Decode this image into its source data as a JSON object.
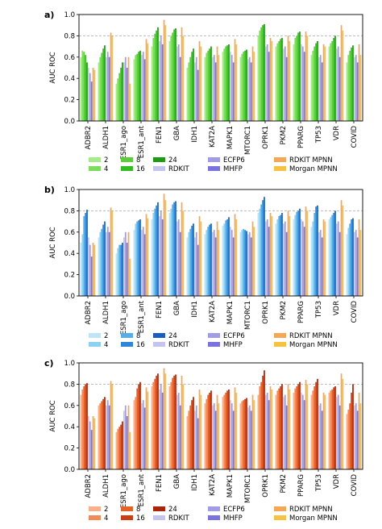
{
  "chart_data": [
    {
      "type": "bar",
      "panel_label": "a)",
      "ylabel": "AUC ROC",
      "ylim": [
        0.0,
        1.0
      ],
      "yticks": [
        "0.0",
        "0.2",
        "0.4",
        "0.6",
        "0.8",
        "1.0"
      ],
      "grid": "dashed lines at 0.8",
      "categories": [
        "ADBR2",
        "ALDH1",
        "ESR1_ago",
        "ESR1_ant",
        "FEN1",
        "GBA",
        "IDH1",
        "KAT2A",
        "MAPK1",
        "MTORC1",
        "OPRK1",
        "PKM2",
        "PPARG",
        "TP53",
        "VDR",
        "COVID"
      ],
      "series": [
        {
          "name": "2",
          "color": "#a6ea8a",
          "values": [
            0.6,
            0.55,
            0.35,
            0.58,
            0.7,
            0.75,
            0.5,
            0.6,
            0.65,
            0.6,
            0.8,
            0.7,
            0.72,
            0.62,
            0.7,
            0.55
          ]
        },
        {
          "name": "4",
          "color": "#7ddb5e",
          "values": [
            0.66,
            0.6,
            0.4,
            0.62,
            0.78,
            0.8,
            0.55,
            0.64,
            0.68,
            0.63,
            0.85,
            0.73,
            0.78,
            0.66,
            0.73,
            0.62
          ]
        },
        {
          "name": "8",
          "color": "#5ccd3a",
          "values": [
            0.65,
            0.64,
            0.45,
            0.63,
            0.82,
            0.83,
            0.6,
            0.66,
            0.7,
            0.65,
            0.88,
            0.75,
            0.8,
            0.7,
            0.75,
            0.66
          ]
        },
        {
          "name": "16",
          "color": "#34bb22",
          "values": [
            0.62,
            0.68,
            0.5,
            0.65,
            0.85,
            0.86,
            0.65,
            0.68,
            0.71,
            0.66,
            0.9,
            0.77,
            0.83,
            0.73,
            0.78,
            0.69
          ]
        },
        {
          "name": "24",
          "color": "#1e9a14",
          "values": [
            0.55,
            0.71,
            0.55,
            0.66,
            0.88,
            0.87,
            0.68,
            0.7,
            0.72,
            0.67,
            0.91,
            0.78,
            0.84,
            0.75,
            0.8,
            0.71
          ]
        },
        {
          "name": "RDKIT",
          "color": "#c4c4ee",
          "values": [
            0.5,
            0.6,
            0.55,
            0.62,
            0.75,
            0.7,
            0.55,
            0.6,
            0.65,
            0.58,
            0.7,
            0.68,
            0.72,
            0.6,
            0.68,
            0.6
          ]
        },
        {
          "name": "ECFP6",
          "color": "#a29ce6",
          "values": [
            0.45,
            0.65,
            0.6,
            0.65,
            0.8,
            0.72,
            0.6,
            0.62,
            0.62,
            0.6,
            0.72,
            0.7,
            0.7,
            0.62,
            0.7,
            0.62
          ]
        },
        {
          "name": "MHFP",
          "color": "#7a72de",
          "values": [
            0.37,
            0.6,
            0.5,
            0.58,
            0.72,
            0.6,
            0.48,
            0.55,
            0.55,
            0.55,
            0.65,
            0.6,
            0.65,
            0.55,
            0.6,
            0.55
          ]
        },
        {
          "name": "RDKIT MPNN",
          "color": "#f4a857",
          "values": [
            0.5,
            0.83,
            0.6,
            0.77,
            0.95,
            0.88,
            0.75,
            0.7,
            0.77,
            0.7,
            0.78,
            0.8,
            0.84,
            0.72,
            0.9,
            0.72
          ]
        },
        {
          "name": "Morgan MPNN",
          "color": "#f6c244",
          "values": [
            0.48,
            0.8,
            0.35,
            0.73,
            0.9,
            0.8,
            0.7,
            0.62,
            0.72,
            0.65,
            0.75,
            0.75,
            0.8,
            0.7,
            0.85,
            0.62
          ]
        }
      ]
    },
    {
      "type": "bar",
      "panel_label": "b)",
      "ylabel": "AUC ROC",
      "ylim": [
        0.0,
        1.0
      ],
      "yticks": [
        "0.0",
        "0.2",
        "0.4",
        "0.6",
        "0.8",
        "1.0"
      ],
      "grid": "dashed lines at 0.8",
      "categories": [
        "ADBR2",
        "ALDH1",
        "ESR1_ago",
        "ESR1_ant",
        "FEN1",
        "GBA",
        "IDH1",
        "KAT2A",
        "MAPK1",
        "MTORC1",
        "OPRK1",
        "PKM2",
        "PPARG",
        "TP53",
        "VDR",
        "COVID"
      ],
      "series": [
        {
          "name": "2",
          "color": "#bfe4f5",
          "values": [
            0.5,
            0.55,
            0.4,
            0.62,
            0.72,
            0.78,
            0.55,
            0.58,
            0.66,
            0.6,
            0.78,
            0.68,
            0.72,
            0.65,
            0.72,
            0.58
          ]
        },
        {
          "name": "4",
          "color": "#8ed0f0",
          "values": [
            0.58,
            0.6,
            0.45,
            0.68,
            0.78,
            0.82,
            0.6,
            0.62,
            0.68,
            0.62,
            0.82,
            0.72,
            0.76,
            0.7,
            0.74,
            0.64
          ]
        },
        {
          "name": "8",
          "color": "#55aee6",
          "values": [
            0.75,
            0.63,
            0.48,
            0.7,
            0.82,
            0.86,
            0.63,
            0.65,
            0.71,
            0.63,
            0.86,
            0.75,
            0.79,
            0.78,
            0.76,
            0.68
          ]
        },
        {
          "name": "16",
          "color": "#2f86d6",
          "values": [
            0.78,
            0.67,
            0.48,
            0.71,
            0.85,
            0.88,
            0.66,
            0.67,
            0.72,
            0.62,
            0.9,
            0.76,
            0.8,
            0.84,
            0.78,
            0.72
          ]
        },
        {
          "name": "24",
          "color": "#1a5fc0",
          "values": [
            0.81,
            0.7,
            0.5,
            0.72,
            0.88,
            0.89,
            0.68,
            0.68,
            0.74,
            0.61,
            0.93,
            0.78,
            0.82,
            0.85,
            0.8,
            0.73
          ]
        },
        {
          "name": "RDKIT",
          "color": "#c4c4ee",
          "values": [
            0.55,
            0.6,
            0.55,
            0.62,
            0.75,
            0.7,
            0.55,
            0.6,
            0.65,
            0.58,
            0.7,
            0.68,
            0.72,
            0.6,
            0.68,
            0.6
          ]
        },
        {
          "name": "ECFP6",
          "color": "#a29ce6",
          "values": [
            0.48,
            0.65,
            0.6,
            0.65,
            0.8,
            0.72,
            0.6,
            0.62,
            0.62,
            0.6,
            0.72,
            0.7,
            0.7,
            0.62,
            0.7,
            0.62
          ]
        },
        {
          "name": "MHFP",
          "color": "#7a72de",
          "values": [
            0.37,
            0.6,
            0.5,
            0.58,
            0.72,
            0.6,
            0.48,
            0.55,
            0.55,
            0.55,
            0.65,
            0.6,
            0.65,
            0.55,
            0.6,
            0.55
          ]
        },
        {
          "name": "RDKIT MPNN",
          "color": "#f4a857",
          "values": [
            0.5,
            0.83,
            0.6,
            0.77,
            0.96,
            0.88,
            0.75,
            0.7,
            0.77,
            0.7,
            0.78,
            0.8,
            0.84,
            0.72,
            0.9,
            0.72
          ]
        },
        {
          "name": "Morgan MPNN",
          "color": "#f6c244",
          "values": [
            0.48,
            0.8,
            0.35,
            0.73,
            0.9,
            0.8,
            0.7,
            0.62,
            0.72,
            0.65,
            0.75,
            0.75,
            0.8,
            0.7,
            0.85,
            0.62
          ]
        }
      ]
    },
    {
      "type": "bar",
      "panel_label": "c)",
      "ylabel": "AUC ROC",
      "ylim": [
        0.0,
        1.0
      ],
      "yticks": [
        "0.0",
        "0.2",
        "0.4",
        "0.6",
        "0.8",
        "1.0"
      ],
      "grid": "dashed lines at 0.8",
      "categories": [
        "ADBR2",
        "ALDH1",
        "ESR1_ago",
        "ESR1_ant",
        "FEN1",
        "GBA",
        "IDH1",
        "KAT2A",
        "MAPK1",
        "MTORC1",
        "OPRK1",
        "PKM2",
        "PPARG",
        "TP53",
        "VDR",
        "COVID"
      ],
      "series": [
        {
          "name": "2",
          "color": "#f7b08a",
          "values": [
            0.7,
            0.6,
            0.35,
            0.65,
            0.78,
            0.78,
            0.5,
            0.62,
            0.68,
            0.62,
            0.7,
            0.7,
            0.72,
            0.7,
            0.72,
            0.52
          ]
        },
        {
          "name": "4",
          "color": "#f08a56",
          "values": [
            0.75,
            0.62,
            0.38,
            0.68,
            0.82,
            0.82,
            0.55,
            0.66,
            0.7,
            0.64,
            0.78,
            0.74,
            0.76,
            0.74,
            0.74,
            0.56
          ]
        },
        {
          "name": "8",
          "color": "#e4612a",
          "values": [
            0.78,
            0.64,
            0.4,
            0.76,
            0.85,
            0.86,
            0.6,
            0.7,
            0.72,
            0.65,
            0.82,
            0.76,
            0.78,
            0.78,
            0.75,
            0.62
          ]
        },
        {
          "name": "16",
          "color": "#cc3e12",
          "values": [
            0.8,
            0.66,
            0.42,
            0.8,
            0.88,
            0.88,
            0.65,
            0.72,
            0.74,
            0.66,
            0.88,
            0.78,
            0.8,
            0.82,
            0.77,
            0.72
          ]
        },
        {
          "name": "24",
          "color": "#a92408",
          "values": [
            0.81,
            0.68,
            0.45,
            0.82,
            0.9,
            0.89,
            0.68,
            0.74,
            0.75,
            0.67,
            0.93,
            0.8,
            0.82,
            0.85,
            0.78,
            0.8
          ]
        },
        {
          "name": "RDKIT",
          "color": "#c4c4ee",
          "values": [
            0.5,
            0.6,
            0.55,
            0.62,
            0.75,
            0.7,
            0.55,
            0.6,
            0.65,
            0.58,
            0.7,
            0.68,
            0.72,
            0.6,
            0.68,
            0.6
          ]
        },
        {
          "name": "ECFP6",
          "color": "#a29ce6",
          "values": [
            0.45,
            0.65,
            0.6,
            0.65,
            0.8,
            0.72,
            0.6,
            0.62,
            0.62,
            0.6,
            0.72,
            0.7,
            0.7,
            0.62,
            0.7,
            0.62
          ]
        },
        {
          "name": "MHFP",
          "color": "#7a72de",
          "values": [
            0.37,
            0.6,
            0.5,
            0.58,
            0.72,
            0.6,
            0.48,
            0.55,
            0.55,
            0.55,
            0.65,
            0.6,
            0.65,
            0.55,
            0.6,
            0.55
          ]
        },
        {
          "name": "RDKIT MPNN",
          "color": "#f4a857",
          "values": [
            0.5,
            0.83,
            0.6,
            0.77,
            0.95,
            0.88,
            0.75,
            0.7,
            0.77,
            0.7,
            0.78,
            0.8,
            0.84,
            0.72,
            0.9,
            0.72
          ]
        },
        {
          "name": "Morgan MPNN",
          "color": "#f6c244",
          "values": [
            0.48,
            0.8,
            0.35,
            0.73,
            0.9,
            0.8,
            0.7,
            0.62,
            0.72,
            0.65,
            0.75,
            0.75,
            0.8,
            0.7,
            0.85,
            0.62
          ]
        }
      ]
    }
  ]
}
